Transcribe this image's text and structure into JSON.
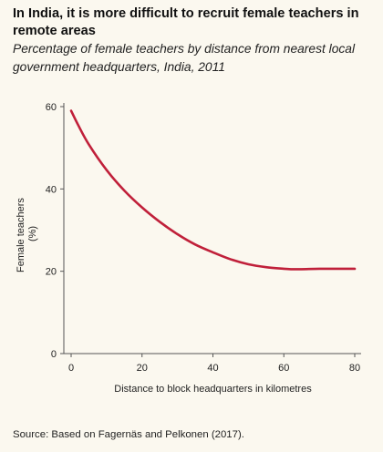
{
  "header": {
    "title": "In India, it is more difficult to recruit female teachers in remote areas",
    "subtitle": "Percentage of female teachers by distance from nearest local government headquarters, India, 2011"
  },
  "footer": {
    "source": "Source: Based on Fagernäs and Pelkonen (2017)."
  },
  "chart_data": {
    "type": "line",
    "title": "In India, it is more difficult to recruit female teachers in remote areas",
    "subtitle": "Percentage of female teachers by distance from nearest local government headquarters, India, 2011",
    "xlabel": "Distance to block headquarters in kilometres",
    "ylabel": "Female teachers (%)",
    "ylabel_lines": [
      "Female teachers",
      "(%)"
    ],
    "xlim": [
      0,
      80
    ],
    "ylim": [
      0,
      60
    ],
    "xticks": [
      0,
      20,
      40,
      60,
      80
    ],
    "yticks": [
      0,
      20,
      40,
      60
    ],
    "grid": false,
    "legend": "none",
    "series": [
      {
        "color": "#c0203a",
        "x": [
          0,
          2,
          5,
          10,
          15,
          20,
          25,
          30,
          35,
          40,
          45,
          50,
          55,
          60,
          62,
          65,
          70,
          75,
          80
        ],
        "y": [
          59,
          55.5,
          50.8,
          44.6,
          39.6,
          35.5,
          32,
          29,
          26.5,
          24.6,
          22.9,
          21.7,
          21,
          20.6,
          20.5,
          20.5,
          20.6,
          20.6,
          20.6
        ]
      }
    ]
  }
}
